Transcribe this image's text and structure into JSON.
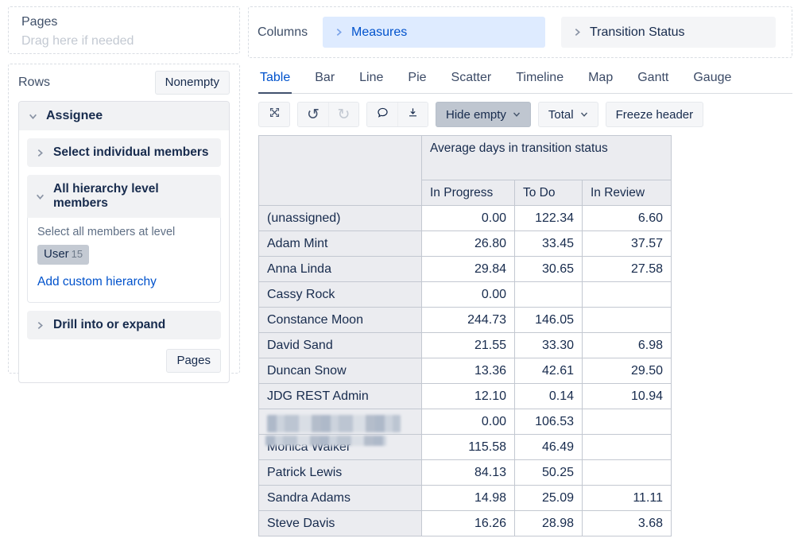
{
  "pages_panel": {
    "title": "Pages",
    "placeholder": "Drag here if needed"
  },
  "rows_panel": {
    "title": "Rows",
    "nonempty_button": "Nonempty",
    "assignee": {
      "title": "Assignee",
      "select_individual": "Select individual members",
      "all_hierarchy": "All hierarchy level members",
      "select_all_label": "Select all members at level",
      "level_badge": {
        "name": "User",
        "count": "15"
      },
      "add_custom_hierarchy": "Add custom hierarchy",
      "drill_into": "Drill into or expand",
      "pages_button": "Pages"
    }
  },
  "columns_panel": {
    "title": "Columns",
    "chips": [
      {
        "label": "Measures",
        "style": "blue"
      },
      {
        "label": "Transition Status",
        "style": "gray"
      }
    ]
  },
  "tabs": {
    "items": [
      "Table",
      "Bar",
      "Line",
      "Pie",
      "Scatter",
      "Timeline",
      "Map",
      "Gantt",
      "Gauge"
    ],
    "active": "Table"
  },
  "toolbar": {
    "icons": [
      "expand-icon",
      "undo-icon",
      "redo-icon",
      "comment-icon",
      "download-icon"
    ],
    "hide_empty": "Hide empty",
    "total": "Total",
    "freeze_header": "Freeze header"
  },
  "table": {
    "measure_header": "Average days in transition status",
    "col_headers": [
      "In Progress",
      "To Do",
      "In Review"
    ],
    "rows": [
      {
        "label": "(unassigned)",
        "values": [
          "0.00",
          "122.34",
          "6.60"
        ]
      },
      {
        "label": "Adam Mint",
        "values": [
          "26.80",
          "33.45",
          "37.57"
        ]
      },
      {
        "label": "Anna Linda",
        "values": [
          "29.84",
          "30.65",
          "27.58"
        ]
      },
      {
        "label": "Cassy Rock",
        "values": [
          "0.00",
          "",
          ""
        ]
      },
      {
        "label": "Constance Moon",
        "values": [
          "244.73",
          "146.05",
          ""
        ]
      },
      {
        "label": "David Sand",
        "values": [
          "21.55",
          "33.30",
          "6.98"
        ]
      },
      {
        "label": "Duncan Snow",
        "values": [
          "13.36",
          "42.61",
          "29.50"
        ]
      },
      {
        "label": "JDG REST Admin",
        "values": [
          "12.10",
          "0.14",
          "10.94"
        ]
      },
      {
        "label": "",
        "redacted": "full",
        "values": [
          "0.00",
          "106.53",
          ""
        ]
      },
      {
        "label": "Monica Walker",
        "redacted": "partial",
        "values": [
          "115.58",
          "46.49",
          ""
        ]
      },
      {
        "label": "Patrick Lewis",
        "values": [
          "84.13",
          "50.25",
          ""
        ]
      },
      {
        "label": "Sandra Adams",
        "values": [
          "14.98",
          "25.09",
          "11.11"
        ]
      },
      {
        "label": "Steve Davis",
        "values": [
          "16.26",
          "28.98",
          "3.68"
        ]
      }
    ]
  },
  "colors": {
    "accent_blue": "#0052cc",
    "chip_blue_bg": "#deebff",
    "text_dark": "#172b4d",
    "table_header_bg": "#ebecf0",
    "pressed_button_bg": "#bfc6d0",
    "tab_underline": "#42526e"
  }
}
